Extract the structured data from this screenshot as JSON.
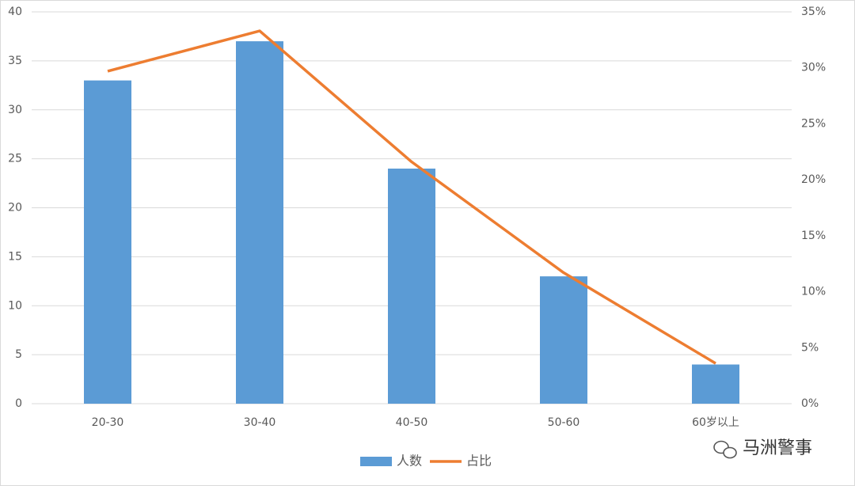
{
  "chart_data": {
    "type": "bar-line",
    "categories": [
      "20-30",
      "30-40",
      "40-50",
      "50-60",
      "60岁以上"
    ],
    "series": [
      {
        "name": "人数",
        "type": "bar",
        "color": "#5b9bd5",
        "values": [
          33,
          37,
          24,
          13,
          4
        ]
      },
      {
        "name": "占比",
        "type": "line",
        "axis": "y2",
        "color": "#ed7d31",
        "values": [
          29.7,
          33.3,
          21.6,
          11.7,
          3.6
        ]
      }
    ],
    "ylim": [
      0,
      40
    ],
    "yticks": [
      0,
      5,
      10,
      15,
      20,
      25,
      30,
      35,
      40
    ],
    "y2lim": [
      0,
      35
    ],
    "y2ticks": [
      {
        "value": 0,
        "label": "0%"
      },
      {
        "value": 5,
        "label": "5%"
      },
      {
        "value": 10,
        "label": "10%"
      },
      {
        "value": 15,
        "label": "15%"
      },
      {
        "value": 20,
        "label": "20%"
      },
      {
        "value": 25,
        "label": "25%"
      },
      {
        "value": 30,
        "label": "30%"
      },
      {
        "value": 35,
        "label": "35%"
      }
    ],
    "grid": true,
    "legend": "bottom"
  },
  "watermark": "马洲警事"
}
